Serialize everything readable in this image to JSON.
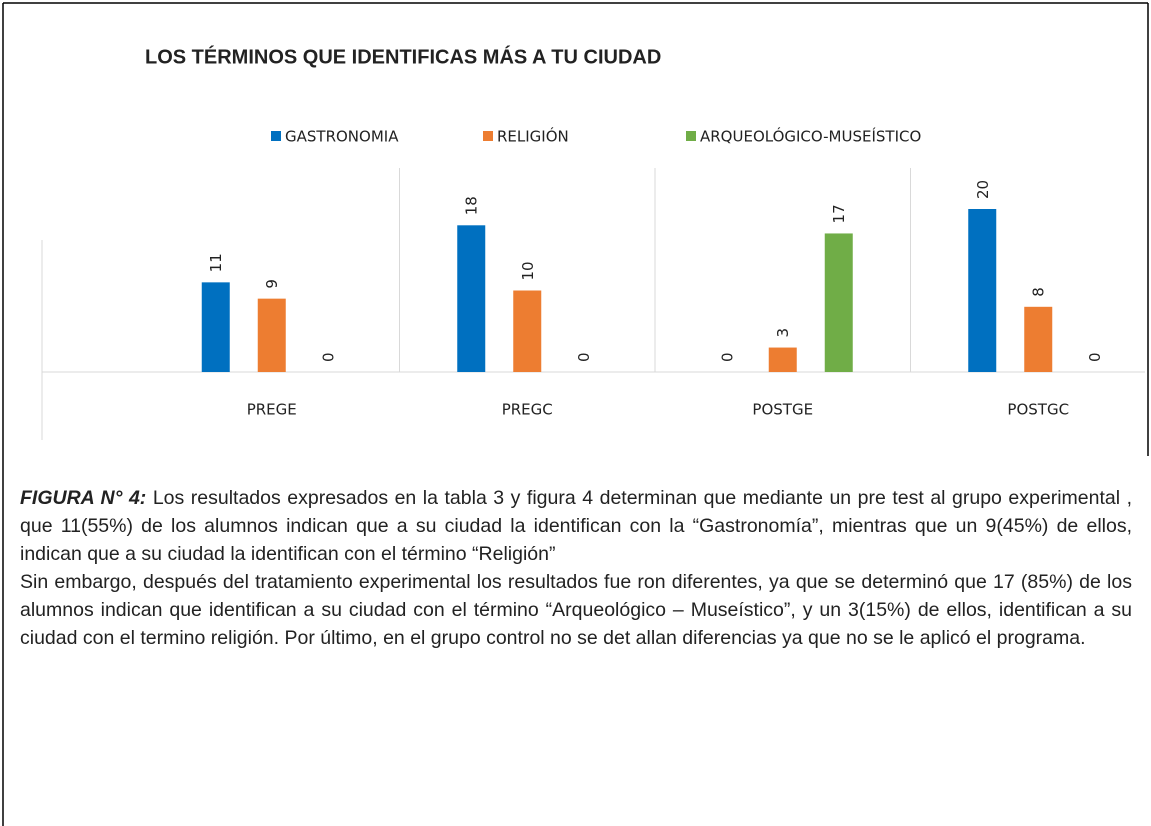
{
  "chart_data": {
    "type": "bar",
    "title": "LOS TÉRMINOS QUE IDENTIFICAS MÁS A TU CIUDAD",
    "categories": [
      "PREGE",
      "PREGC",
      "POSTGE",
      "POSTGC"
    ],
    "series": [
      {
        "name": "GASTRONOMIA",
        "color": "#0070c0",
        "values": [
          11,
          18,
          0,
          20
        ]
      },
      {
        "name": "RELIGIÓN",
        "color": "#ed7d31",
        "values": [
          9,
          10,
          3,
          8
        ]
      },
      {
        "name": "ARQUEOLÓGICO-MUSEÍSTICO",
        "color": "#70ad47",
        "values": [
          0,
          0,
          17,
          0
        ]
      }
    ],
    "ylim": [
      0,
      20
    ],
    "legend": "top"
  },
  "caption": {
    "label": "FIGURA N° 4:",
    "paragraphs": [
      "Los resultados expresados en la tabla 3 y figura 4 determinan que mediante un pre test al grupo experimental , que 11(55%) de los alumnos indican que a su ciudad la identifican con la “Gastronomía”, mientras que un 9(45%) de ellos, indican que a su ciudad la identifican con el término “Religión”",
      "Sin embargo, después del tratamiento experimental los resultados fue ron diferentes, ya que se determinó que 17 (85%) de los alumnos indican que identifican a su ciudad con el término “Arqueológico – Museístico”, y un 3(15%) de ellos, identifican a su ciudad con el termino religión. Por último, en el grupo control no se det allan diferencias ya que no se le aplicó el programa."
    ]
  }
}
